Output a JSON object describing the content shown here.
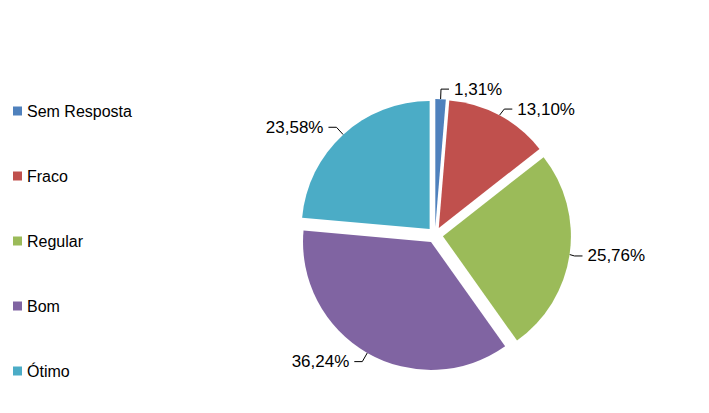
{
  "chart_data": {
    "type": "pie",
    "categories": [
      "Sem Resposta",
      "Fraco",
      "Regular",
      "Bom",
      "Ótimo"
    ],
    "values": [
      1.31,
      13.1,
      25.76,
      36.24,
      23.58
    ],
    "value_labels": [
      "1,31%",
      "13,10%",
      "25,76%",
      "36,24%",
      "23,58%"
    ],
    "colors": [
      "#4f81bd",
      "#c0504d",
      "#9bbb59",
      "#8064a2",
      "#4bacc6"
    ],
    "data_labels": true,
    "legend": "left"
  }
}
